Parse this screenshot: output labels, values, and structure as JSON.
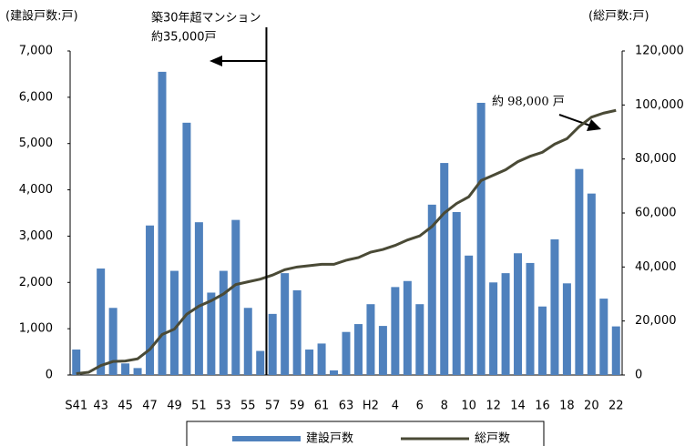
{
  "chart_data": {
    "type": "bar_line",
    "y_axis_label": "(建設戸数:戸)",
    "y2_axis_label": "(総戸数:戸)",
    "annotations": [
      "築30年超マンション",
      "約35,000戸",
      "約 98,000 戸"
    ],
    "categories": [
      "S41",
      null,
      "43",
      null,
      "45",
      null,
      "47",
      null,
      "49",
      null,
      "51",
      null,
      "53",
      null,
      "55",
      null,
      "57",
      null,
      "59",
      null,
      "61",
      null,
      "63",
      null,
      "H2",
      null,
      "4",
      null,
      "6",
      null,
      "8",
      null,
      "10",
      null,
      "12",
      null,
      "14",
      null,
      "16",
      null,
      "18",
      null,
      "20",
      null,
      "22"
    ],
    "series": [
      {
        "name": "建設戸数",
        "color": "#4f81bd",
        "type": "bar",
        "values": [
          550,
          0,
          2300,
          1450,
          250,
          150,
          3230,
          6550,
          2250,
          5450,
          3300,
          1780,
          2250,
          3350,
          1450,
          520,
          1320,
          2200,
          1830,
          550,
          680,
          100,
          930,
          1100,
          1530,
          1060,
          1900,
          2030,
          1530,
          3680,
          4580,
          3520,
          2580,
          5880,
          2000,
          2200,
          2630,
          2420,
          1480,
          2930,
          1980,
          4450,
          3920,
          1650,
          1050
        ]
      },
      {
        "name": "総戸数",
        "color": "#4a4a36",
        "type": "line",
        "axis": "y2",
        "values": [
          500,
          1000,
          3500,
          5000,
          5200,
          6000,
          9500,
          15000,
          17000,
          22500,
          25500,
          27500,
          30000,
          33500,
          34500,
          35500,
          37000,
          39000,
          40000,
          40500,
          41000,
          41000,
          42500,
          43500,
          45500,
          46500,
          48000,
          50000,
          51500,
          55000,
          60000,
          63500,
          66000,
          72000,
          74000,
          76000,
          79000,
          81000,
          82500,
          85500,
          87500,
          92000,
          95500,
          97000,
          98000
        ]
      }
    ],
    "ylim": [
      0,
      7000
    ],
    "yticks": [
      0,
      {
        "value": 1000,
        "label": "1,000"
      },
      {
        "value": 2000,
        "label": "2,000"
      },
      {
        "value": 3000,
        "label": "3,000"
      },
      {
        "value": 4000,
        "label": "4,000"
      },
      {
        "value": 5000,
        "label": "5,000"
      },
      {
        "value": 6000,
        "label": "6,000"
      },
      {
        "value": 7000,
        "label": "7,000"
      }
    ],
    "y2lim": [
      0,
      120000
    ],
    "y2ticks": [
      0,
      {
        "value": 20000,
        "label": "20,000"
      },
      {
        "value": 40000,
        "label": "40,000"
      },
      {
        "value": 60000,
        "label": "60,000"
      },
      {
        "value": 80000,
        "label": "80,000"
      },
      {
        "value": 100000,
        "label": "100,000"
      },
      {
        "value": 120000,
        "label": "120,000"
      }
    ],
    "legend": "bottom"
  }
}
